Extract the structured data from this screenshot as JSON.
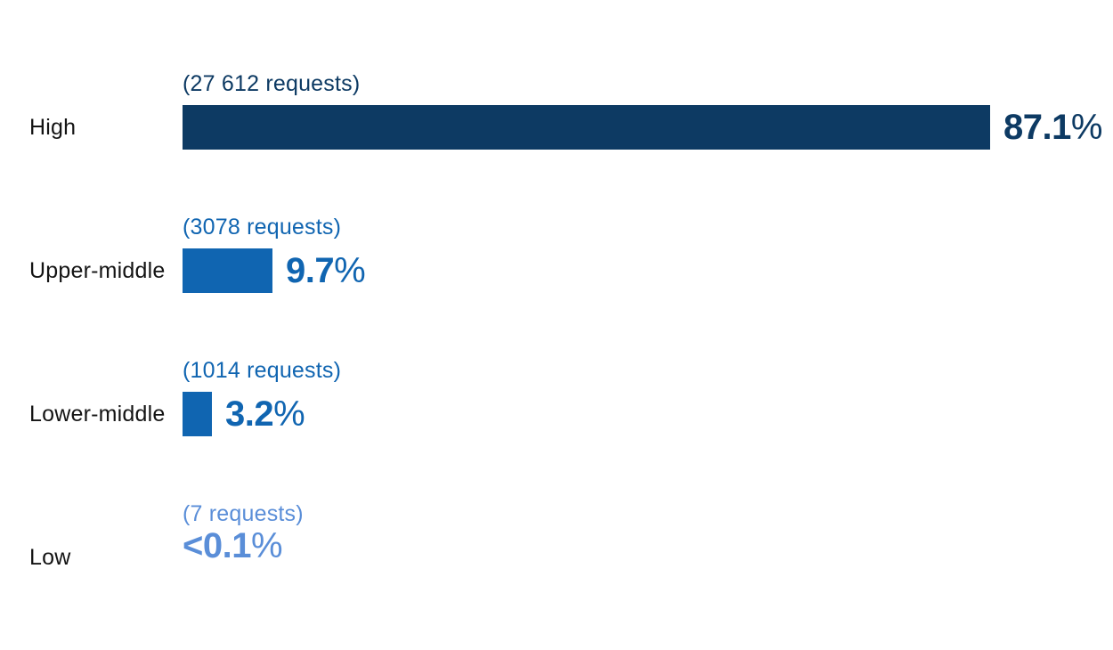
{
  "chart_data": {
    "type": "bar",
    "orientation": "horizontal",
    "title": "",
    "xlabel": "",
    "ylabel": "",
    "categories": [
      "High",
      "Upper-middle",
      "Lower-middle",
      "Low"
    ],
    "values": [
      87.1,
      9.7,
      3.2,
      0.02
    ],
    "value_texts": [
      "87.1",
      "9.7",
      "3.2",
      "<0.1"
    ],
    "percent_sign": "%",
    "value_labels": [
      "87.1%",
      "9.7%",
      "3.2%",
      "<0.1%"
    ],
    "requests": [
      27612,
      3078,
      1014,
      7
    ],
    "request_labels": [
      "(27 612 requests)",
      "(3078 requests)",
      "(1014 requests)",
      "(7 requests)"
    ],
    "bar_colors": [
      "#0d3a63",
      "#1065b1",
      "#1065b1",
      "#5a8ed8"
    ],
    "label_color": "#141414",
    "background": "#ffffff",
    "xlim": [
      0,
      100
    ],
    "grid": false,
    "legend": false
  }
}
